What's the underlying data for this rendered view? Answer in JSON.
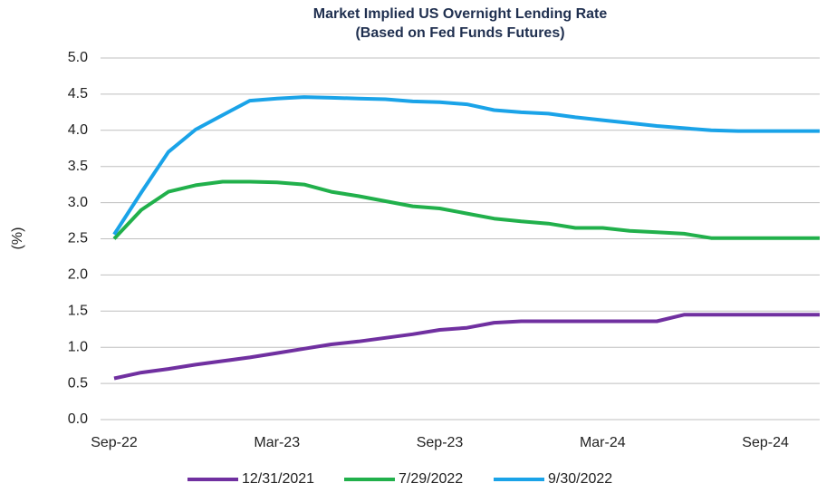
{
  "chart_data": {
    "type": "line",
    "title": "Market Implied US Overnight Lending Rate",
    "subtitle": "(Based on Fed Funds Futures)",
    "y_label": "(%)",
    "categories": [
      "Sep-22",
      null,
      null,
      null,
      null,
      null,
      "Mar-23",
      null,
      null,
      null,
      null,
      null,
      "Sep-23",
      null,
      null,
      null,
      null,
      null,
      "Mar-24",
      null,
      null,
      null,
      null,
      null,
      "Sep-24",
      null,
      null
    ],
    "series": [
      {
        "name": "12/31/2021",
        "color": "#7030a0",
        "values": [
          0.57,
          0.65,
          0.7,
          0.76,
          0.81,
          0.86,
          0.92,
          0.98,
          1.04,
          1.08,
          1.13,
          1.18,
          1.24,
          1.27,
          1.34,
          1.36,
          1.36,
          1.36,
          1.36,
          1.36,
          1.36,
          1.45,
          1.45,
          1.45,
          1.45,
          1.45,
          1.45
        ]
      },
      {
        "name": "7/29/2022",
        "color": "#21b04b",
        "values": [
          2.5,
          2.9,
          3.15,
          3.24,
          3.29,
          3.29,
          3.28,
          3.25,
          3.15,
          3.09,
          3.02,
          2.95,
          2.92,
          2.85,
          2.78,
          2.74,
          2.71,
          2.65,
          2.65,
          2.61,
          2.59,
          2.57,
          2.51,
          2.51,
          2.51,
          2.51,
          2.51
        ]
      },
      {
        "name": "9/30/2022",
        "color": "#1aa3e8",
        "values": [
          2.56,
          3.14,
          3.7,
          4.01,
          4.21,
          4.41,
          4.44,
          4.46,
          4.45,
          4.44,
          4.43,
          4.4,
          4.39,
          4.36,
          4.28,
          4.25,
          4.23,
          4.18,
          4.14,
          4.1,
          4.06,
          4.03,
          4.0,
          3.99,
          3.99,
          3.99,
          3.99
        ]
      }
    ],
    "ylim": [
      0,
      5
    ],
    "yticks": [
      {
        "value": 0,
        "label": "0.0"
      },
      {
        "value": 0.5,
        "label": "0.5"
      },
      {
        "value": 1,
        "label": "1.0"
      },
      {
        "value": 1.5,
        "label": "1.5"
      },
      {
        "value": 2,
        "label": "2.0"
      },
      {
        "value": 2.5,
        "label": "2.5"
      },
      {
        "value": 3,
        "label": "3.0"
      },
      {
        "value": 3.5,
        "label": "3.5"
      },
      {
        "value": 4,
        "label": "4.0"
      },
      {
        "value": 4.5,
        "label": "4.5"
      },
      {
        "value": 5,
        "label": "5.0"
      }
    ],
    "grid": true,
    "legend": "bottom"
  }
}
